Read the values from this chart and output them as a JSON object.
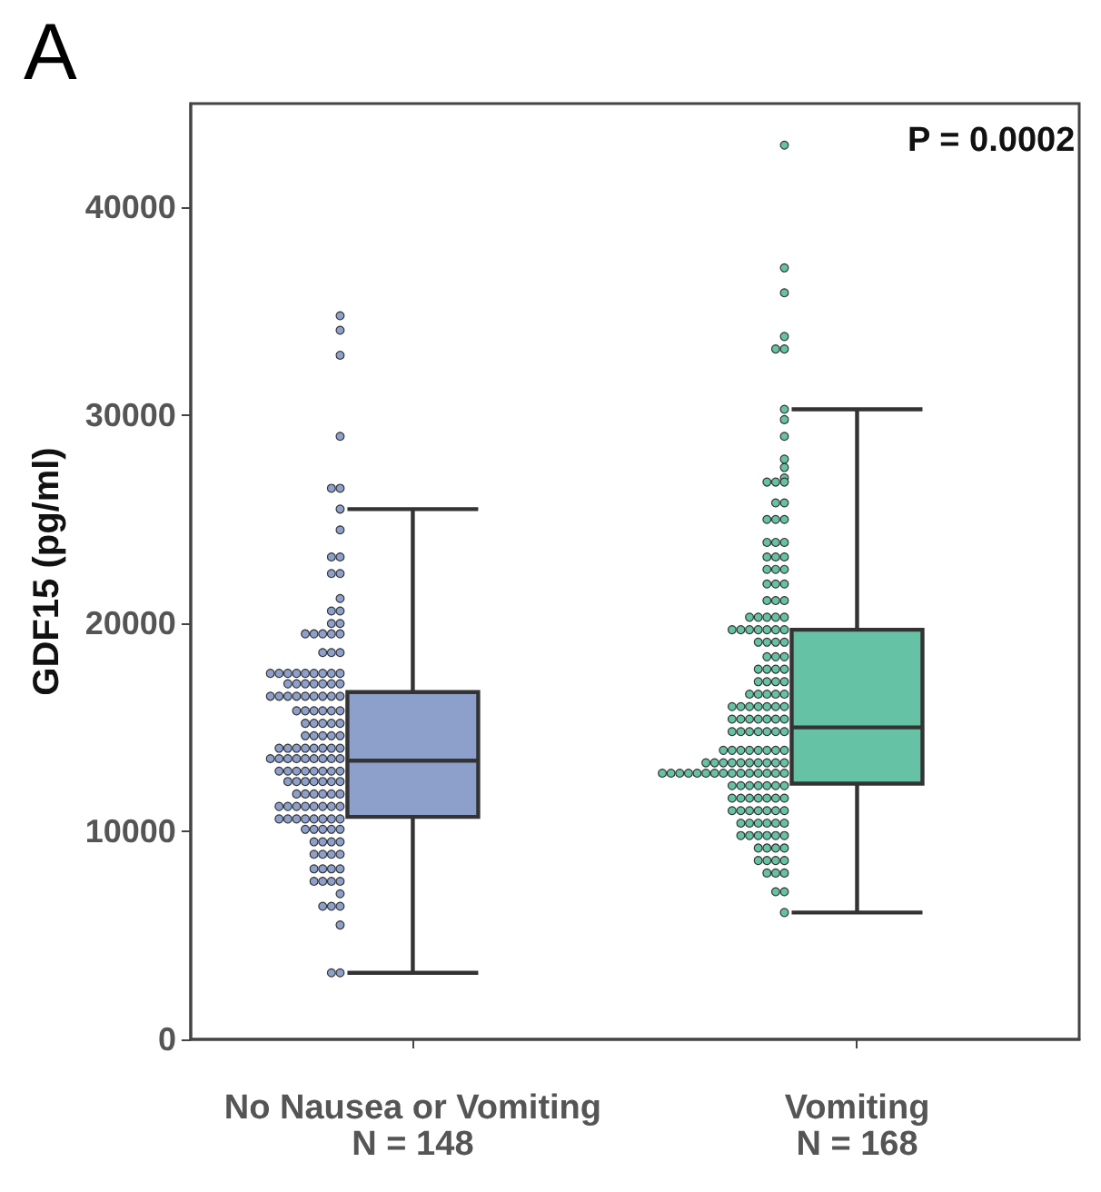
{
  "chart_data": {
    "type": "box",
    "title": "A",
    "ylabel": "GDF15 (pg/ml)",
    "categories": [
      "No Nausea or Vomiting\nN = 148",
      "Vomiting\nN = 168"
    ],
    "ylim": [
      0,
      45000
    ],
    "yticks": [
      0,
      10000,
      20000,
      30000,
      40000
    ],
    "annotations": [
      "P = 0.0002"
    ],
    "series": [
      {
        "type": "box",
        "colors": [
          "#8da0cb",
          "#66c2a5"
        ],
        "boxes": [
          {
            "low": 3200,
            "q1": 10700,
            "median": 13400,
            "q3": 16700,
            "high": 25500
          },
          {
            "low": 6100,
            "q1": 12300,
            "median": 15000,
            "q3": 19700,
            "high": 30300
          }
        ]
      },
      {
        "type": "scatter",
        "color": "#8da0cb",
        "x": [
          "No Nausea or Vomiting\nN = 148",
          "No Nausea or Vomiting\nN = 148",
          "No Nausea or Vomiting\nN = 148",
          "No Nausea or Vomiting\nN = 148",
          "No Nausea or Vomiting\nN = 148",
          "No Nausea or Vomiting\nN = 148",
          "No Nausea or Vomiting\nN = 148",
          "No Nausea or Vomiting\nN = 148",
          "No Nausea or Vomiting\nN = 148",
          "No Nausea or Vomiting\nN = 148",
          "No Nausea or Vomiting\nN = 148",
          "No Nausea or Vomiting\nN = 148",
          "No Nausea or Vomiting\nN = 148",
          "No Nausea or Vomiting\nN = 148",
          "No Nausea or Vomiting\nN = 148",
          "No Nausea or Vomiting\nN = 148",
          "No Nausea or Vomiting\nN = 148",
          "No Nausea or Vomiting\nN = 148",
          "No Nausea or Vomiting\nN = 148",
          "No Nausea or Vomiting\nN = 148",
          "No Nausea or Vomiting\nN = 148",
          "No Nausea or Vomiting\nN = 148",
          "No Nausea or Vomiting\nN = 148",
          "No Nausea or Vomiting\nN = 148",
          "No Nausea or Vomiting\nN = 148",
          "No Nausea or Vomiting\nN = 148",
          "No Nausea or Vomiting\nN = 148",
          "No Nausea or Vomiting\nN = 148",
          "No Nausea or Vomiting\nN = 148",
          "No Nausea or Vomiting\nN = 148",
          "No Nausea or Vomiting\nN = 148",
          "No Nausea or Vomiting\nN = 148",
          "No Nausea or Vomiting\nN = 148",
          "No Nausea or Vomiting\nN = 148",
          "No Nausea or Vomiting\nN = 148",
          "No Nausea or Vomiting\nN = 148",
          "No Nausea or Vomiting\nN = 148",
          "No Nausea or Vomiting\nN = 148",
          "No Nausea or Vomiting\nN = 148",
          "No Nausea or Vomiting\nN = 148",
          "No Nausea or Vomiting\nN = 148",
          "No Nausea or Vomiting\nN = 148",
          "No Nausea or Vomiting\nN = 148",
          "No Nausea or Vomiting\nN = 148",
          "No Nausea or Vomiting\nN = 148",
          "No Nausea or Vomiting\nN = 148",
          "No Nausea or Vomiting\nN = 148",
          "No Nausea or Vomiting\nN = 148",
          "No Nausea or Vomiting\nN = 148",
          "No Nausea or Vomiting\nN = 148",
          "No Nausea or Vomiting\nN = 148",
          "No Nausea or Vomiting\nN = 148",
          "No Nausea or Vomiting\nN = 148",
          "No Nausea or Vomiting\nN = 148",
          "No Nausea or Vomiting\nN = 148",
          "No Nausea or Vomiting\nN = 148",
          "No Nausea or Vomiting\nN = 148",
          "No Nausea or Vomiting\nN = 148",
          "No Nausea or Vomiting\nN = 148",
          "No Nausea or Vomiting\nN = 148",
          "No Nausea or Vomiting\nN = 148",
          "No Nausea or Vomiting\nN = 148",
          "No Nausea or Vomiting\nN = 148",
          "No Nausea or Vomiting\nN = 148",
          "No Nausea or Vomiting\nN = 148",
          "No Nausea or Vomiting\nN = 148",
          "No Nausea or Vomiting\nN = 148",
          "No Nausea or Vomiting\nN = 148",
          "No Nausea or Vomiting\nN = 148",
          "No Nausea or Vomiting\nN = 148",
          "No Nausea or Vomiting\nN = 148",
          "No Nausea or Vomiting\nN = 148",
          "No Nausea or Vomiting\nN = 148",
          "No Nausea or Vomiting\nN = 148",
          "No Nausea or Vomiting\nN = 148",
          "No Nausea or Vomiting\nN = 148",
          "No Nausea or Vomiting\nN = 148",
          "No Nausea or Vomiting\nN = 148",
          "No Nausea or Vomiting\nN = 148",
          "No Nausea or Vomiting\nN = 148",
          "No Nausea or Vomiting\nN = 148",
          "No Nausea or Vomiting\nN = 148",
          "No Nausea or Vomiting\nN = 148",
          "No Nausea or Vomiting\nN = 148",
          "No Nausea or Vomiting\nN = 148",
          "No Nausea or Vomiting\nN = 148",
          "No Nausea or Vomiting\nN = 148",
          "No Nausea or Vomiting\nN = 148",
          "No Nausea or Vomiting\nN = 148",
          "No Nausea or Vomiting\nN = 148",
          "No Nausea or Vomiting\nN = 148",
          "No Nausea or Vomiting\nN = 148",
          "No Nausea or Vomiting\nN = 148",
          "No Nausea or Vomiting\nN = 148",
          "No Nausea or Vomiting\nN = 148",
          "No Nausea or Vomiting\nN = 148",
          "No Nausea or Vomiting\nN = 148",
          "No Nausea or Vomiting\nN = 148",
          "No Nausea or Vomiting\nN = 148",
          "No Nausea or Vomiting\nN = 148",
          "No Nausea or Vomiting\nN = 148",
          "No Nausea or Vomiting\nN = 148",
          "No Nausea or Vomiting\nN = 148",
          "No Nausea or Vomiting\nN = 148",
          "No Nausea or Vomiting\nN = 148",
          "No Nausea or Vomiting\nN = 148",
          "No Nausea or Vomiting\nN = 148",
          "No Nausea or Vomiting\nN = 148",
          "No Nausea or Vomiting\nN = 148",
          "No Nausea or Vomiting\nN = 148",
          "No Nausea or Vomiting\nN = 148",
          "No Nausea or Vomiting\nN = 148",
          "No Nausea or Vomiting\nN = 148",
          "No Nausea or Vomiting\nN = 148",
          "No Nausea or Vomiting\nN = 148",
          "No Nausea or Vomiting\nN = 148",
          "No Nausea or Vomiting\nN = 148",
          "No Nausea or Vomiting\nN = 148",
          "No Nausea or Vomiting\nN = 148",
          "No Nausea or Vomiting\nN = 148",
          "No Nausea or Vomiting\nN = 148",
          "No Nausea or Vomiting\nN = 148",
          "No Nausea or Vomiting\nN = 148",
          "No Nausea or Vomiting\nN = 148",
          "No Nausea or Vomiting\nN = 148",
          "No Nausea or Vomiting\nN = 148",
          "No Nausea or Vomiting\nN = 148",
          "No Nausea or Vomiting\nN = 148",
          "No Nausea or Vomiting\nN = 148",
          "No Nausea or Vomiting\nN = 148",
          "No Nausea or Vomiting\nN = 148",
          "No Nausea or Vomiting\nN = 148",
          "No Nausea or Vomiting\nN = 148",
          "No Nausea or Vomiting\nN = 148",
          "No Nausea or Vomiting\nN = 148",
          "No Nausea or Vomiting\nN = 148",
          "No Nausea or Vomiting\nN = 148",
          "No Nausea or Vomiting\nN = 148",
          "No Nausea or Vomiting\nN = 148",
          "No Nausea or Vomiting\nN = 148",
          "No Nausea or Vomiting\nN = 148",
          "No Nausea or Vomiting\nN = 148",
          "No Nausea or Vomiting\nN = 148",
          "No Nausea or Vomiting\nN = 148",
          "No Nausea or Vomiting\nN = 148",
          "No Nausea or Vomiting\nN = 148",
          "No Nausea or Vomiting\nN = 148",
          "No Nausea or Vomiting\nN = 148"
        ],
        "values": [
          34800,
          34100,
          32900,
          29000,
          26500,
          26500,
          25500,
          24500,
          23200,
          23200,
          22400,
          22400,
          21200,
          20600,
          20600,
          20000,
          20000,
          19500,
          19500,
          19500,
          19500,
          19500,
          18600,
          18600,
          18600,
          17600,
          17600,
          17600,
          17600,
          17600,
          17600,
          17600,
          17600,
          17600,
          17100,
          17100,
          17100,
          17100,
          17100,
          17100,
          17100,
          16500,
          16500,
          16500,
          16500,
          16500,
          16500,
          16500,
          16500,
          16500,
          15800,
          15800,
          15800,
          15800,
          15800,
          15800,
          15200,
          15200,
          15200,
          15200,
          15200,
          14600,
          14600,
          14600,
          14600,
          14600,
          14000,
          14000,
          14000,
          14000,
          14000,
          14000,
          14000,
          14000,
          13500,
          13500,
          13500,
          13500,
          13500,
          13500,
          13500,
          13500,
          13500,
          12900,
          12900,
          12900,
          12900,
          12900,
          12900,
          12900,
          12900,
          12400,
          12400,
          12400,
          12400,
          12400,
          12400,
          12400,
          11800,
          11800,
          11800,
          11800,
          11800,
          11800,
          11200,
          11200,
          11200,
          11200,
          11200,
          11200,
          11200,
          11200,
          10600,
          10600,
          10600,
          10600,
          10600,
          10600,
          10600,
          10600,
          10100,
          10100,
          10100,
          10100,
          10100,
          9500,
          9500,
          9500,
          9500,
          8900,
          8900,
          8900,
          8900,
          8200,
          8200,
          8200,
          8200,
          7600,
          7600,
          7600,
          7600,
          7000,
          6400,
          6400,
          6400,
          5500,
          3200,
          3200
        ]
      },
      {
        "type": "scatter",
        "color": "#66c2a5",
        "x": [
          "Vomiting\nN = 168",
          "Vomiting\nN = 168",
          "Vomiting\nN = 168",
          "Vomiting\nN = 168",
          "Vomiting\nN = 168",
          "Vomiting\nN = 168",
          "Vomiting\nN = 168",
          "Vomiting\nN = 168",
          "Vomiting\nN = 168",
          "Vomiting\nN = 168",
          "Vomiting\nN = 168",
          "Vomiting\nN = 168",
          "Vomiting\nN = 168",
          "Vomiting\nN = 168",
          "Vomiting\nN = 168",
          "Vomiting\nN = 168",
          "Vomiting\nN = 168",
          "Vomiting\nN = 168",
          "Vomiting\nN = 168",
          "Vomiting\nN = 168",
          "Vomiting\nN = 168",
          "Vomiting\nN = 168",
          "Vomiting\nN = 168",
          "Vomiting\nN = 168",
          "Vomiting\nN = 168",
          "Vomiting\nN = 168",
          "Vomiting\nN = 168",
          "Vomiting\nN = 168",
          "Vomiting\nN = 168",
          "Vomiting\nN = 168",
          "Vomiting\nN = 168",
          "Vomiting\nN = 168",
          "Vomiting\nN = 168",
          "Vomiting\nN = 168",
          "Vomiting\nN = 168",
          "Vomiting\nN = 168",
          "Vomiting\nN = 168",
          "Vomiting\nN = 168",
          "Vomiting\nN = 168",
          "Vomiting\nN = 168",
          "Vomiting\nN = 168",
          "Vomiting\nN = 168",
          "Vomiting\nN = 168",
          "Vomiting\nN = 168",
          "Vomiting\nN = 168",
          "Vomiting\nN = 168",
          "Vomiting\nN = 168",
          "Vomiting\nN = 168",
          "Vomiting\nN = 168",
          "Vomiting\nN = 168",
          "Vomiting\nN = 168",
          "Vomiting\nN = 168",
          "Vomiting\nN = 168",
          "Vomiting\nN = 168",
          "Vomiting\nN = 168",
          "Vomiting\nN = 168",
          "Vomiting\nN = 168",
          "Vomiting\nN = 168",
          "Vomiting\nN = 168",
          "Vomiting\nN = 168",
          "Vomiting\nN = 168",
          "Vomiting\nN = 168",
          "Vomiting\nN = 168",
          "Vomiting\nN = 168",
          "Vomiting\nN = 168",
          "Vomiting\nN = 168",
          "Vomiting\nN = 168",
          "Vomiting\nN = 168",
          "Vomiting\nN = 168",
          "Vomiting\nN = 168",
          "Vomiting\nN = 168",
          "Vomiting\nN = 168",
          "Vomiting\nN = 168",
          "Vomiting\nN = 168",
          "Vomiting\nN = 168",
          "Vomiting\nN = 168",
          "Vomiting\nN = 168",
          "Vomiting\nN = 168",
          "Vomiting\nN = 168",
          "Vomiting\nN = 168",
          "Vomiting\nN = 168",
          "Vomiting\nN = 168",
          "Vomiting\nN = 168",
          "Vomiting\nN = 168",
          "Vomiting\nN = 168",
          "Vomiting\nN = 168",
          "Vomiting\nN = 168",
          "Vomiting\nN = 168",
          "Vomiting\nN = 168",
          "Vomiting\nN = 168",
          "Vomiting\nN = 168",
          "Vomiting\nN = 168",
          "Vomiting\nN = 168",
          "Vomiting\nN = 168",
          "Vomiting\nN = 168",
          "Vomiting\nN = 168",
          "Vomiting\nN = 168",
          "Vomiting\nN = 168",
          "Vomiting\nN = 168",
          "Vomiting\nN = 168",
          "Vomiting\nN = 168",
          "Vomiting\nN = 168",
          "Vomiting\nN = 168",
          "Vomiting\nN = 168",
          "Vomiting\nN = 168",
          "Vomiting\nN = 168",
          "Vomiting\nN = 168",
          "Vomiting\nN = 168",
          "Vomiting\nN = 168",
          "Vomiting\nN = 168",
          "Vomiting\nN = 168",
          "Vomiting\nN = 168",
          "Vomiting\nN = 168",
          "Vomiting\nN = 168",
          "Vomiting\nN = 168",
          "Vomiting\nN = 168",
          "Vomiting\nN = 168",
          "Vomiting\nN = 168",
          "Vomiting\nN = 168",
          "Vomiting\nN = 168",
          "Vomiting\nN = 168",
          "Vomiting\nN = 168",
          "Vomiting\nN = 168",
          "Vomiting\nN = 168",
          "Vomiting\nN = 168",
          "Vomiting\nN = 168",
          "Vomiting\nN = 168",
          "Vomiting\nN = 168",
          "Vomiting\nN = 168",
          "Vomiting\nN = 168",
          "Vomiting\nN = 168",
          "Vomiting\nN = 168",
          "Vomiting\nN = 168",
          "Vomiting\nN = 168",
          "Vomiting\nN = 168",
          "Vomiting\nN = 168",
          "Vomiting\nN = 168",
          "Vomiting\nN = 168",
          "Vomiting\nN = 168",
          "Vomiting\nN = 168",
          "Vomiting\nN = 168",
          "Vomiting\nN = 168",
          "Vomiting\nN = 168",
          "Vomiting\nN = 168",
          "Vomiting\nN = 168",
          "Vomiting\nN = 168",
          "Vomiting\nN = 168",
          "Vomiting\nN = 168",
          "Vomiting\nN = 168",
          "Vomiting\nN = 168",
          "Vomiting\nN = 168",
          "Vomiting\nN = 168",
          "Vomiting\nN = 168",
          "Vomiting\nN = 168",
          "Vomiting\nN = 168",
          "Vomiting\nN = 168",
          "Vomiting\nN = 168",
          "Vomiting\nN = 168",
          "Vomiting\nN = 168",
          "Vomiting\nN = 168",
          "Vomiting\nN = 168",
          "Vomiting\nN = 168",
          "Vomiting\nN = 168",
          "Vomiting\nN = 168",
          "Vomiting\nN = 168",
          "Vomiting\nN = 168",
          "Vomiting\nN = 168",
          "Vomiting\nN = 168"
        ],
        "values": [
          43000,
          37100,
          35900,
          33800,
          33200,
          33200,
          30300,
          29800,
          29000,
          27900,
          27500,
          27000,
          26800,
          26800,
          26800,
          25800,
          25800,
          25000,
          25000,
          25000,
          23900,
          23900,
          23900,
          23200,
          23200,
          23200,
          22600,
          22600,
          22600,
          21900,
          21900,
          21900,
          21100,
          21100,
          21100,
          20300,
          20300,
          20300,
          20300,
          20300,
          19700,
          19700,
          19700,
          19700,
          19700,
          19700,
          19700,
          19100,
          19100,
          19100,
          19100,
          18400,
          18400,
          18400,
          17800,
          17800,
          17800,
          17800,
          17200,
          17200,
          17200,
          17200,
          16600,
          16600,
          16600,
          16600,
          16600,
          16000,
          16000,
          16000,
          16000,
          16000,
          16000,
          16000,
          15400,
          15400,
          15400,
          15400,
          15400,
          15400,
          15400,
          14800,
          14800,
          14800,
          14800,
          14800,
          14800,
          14800,
          13900,
          13900,
          13900,
          13900,
          13900,
          13900,
          13900,
          13900,
          13300,
          13300,
          13300,
          13300,
          13300,
          13300,
          13300,
          13300,
          13300,
          13300,
          12800,
          12800,
          12800,
          12800,
          12800,
          12800,
          12800,
          12800,
          12800,
          12800,
          12800,
          12800,
          12800,
          12800,
          12800,
          12200,
          12200,
          12200,
          12200,
          12200,
          12200,
          12200,
          11600,
          11600,
          11600,
          11600,
          11600,
          11600,
          11600,
          11000,
          11000,
          11000,
          11000,
          11000,
          11000,
          11000,
          10400,
          10400,
          10400,
          10400,
          10400,
          10400,
          9800,
          9800,
          9800,
          9800,
          9800,
          9800,
          9200,
          9200,
          9200,
          9200,
          8600,
          8600,
          8600,
          8600,
          8000,
          8000,
          8000,
          7100,
          7100,
          6100
        ]
      }
    ]
  }
}
